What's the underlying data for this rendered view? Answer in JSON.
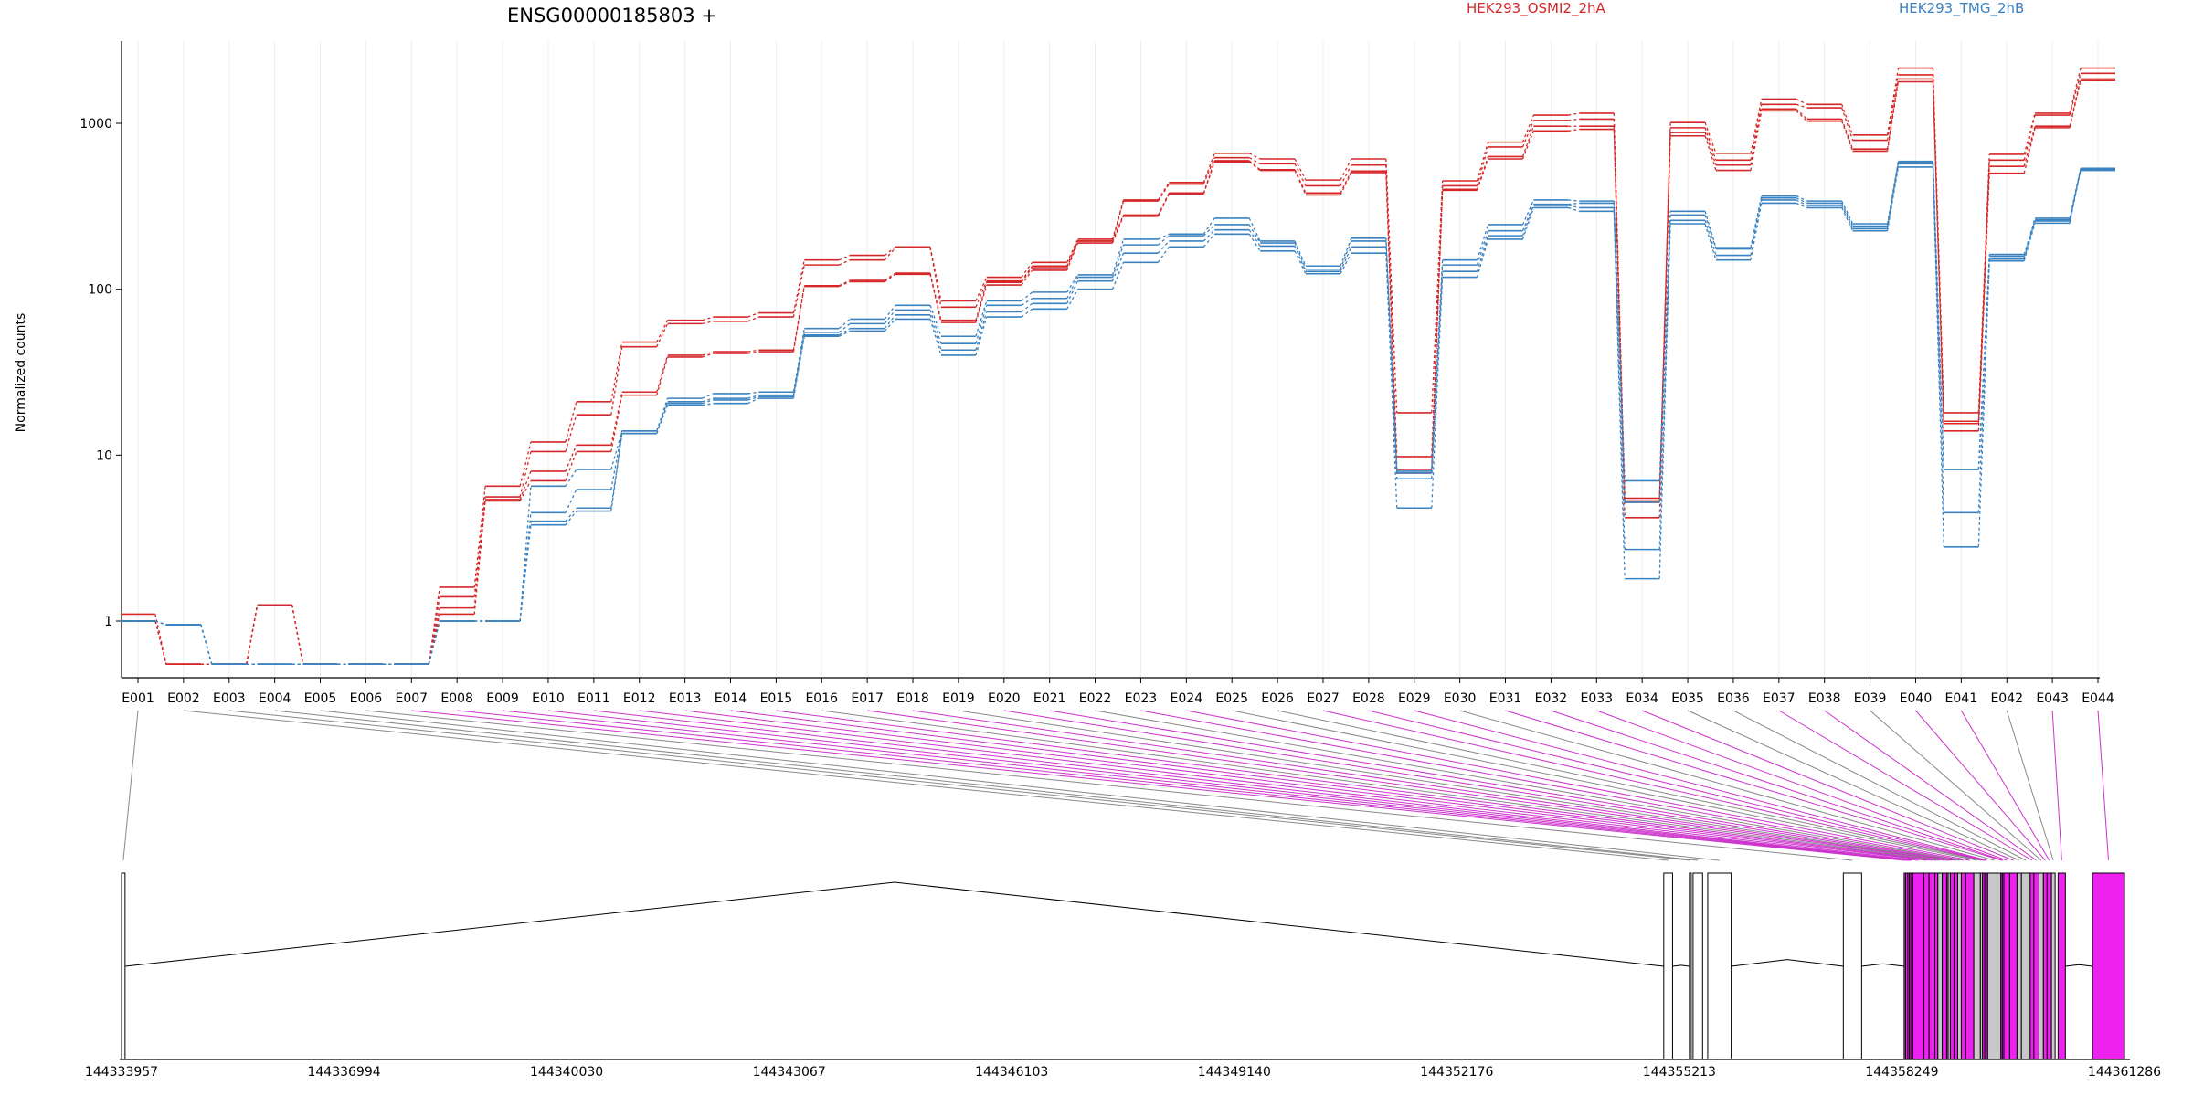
{
  "chart_data": {
    "type": "line",
    "title": "ENSG00000185803 +",
    "ylabel": "Normalized counts",
    "xlabel": "",
    "yscale": "log",
    "ylim": [
      0.55,
      2800
    ],
    "yticks": [
      {
        "value": 1,
        "label": "1"
      },
      {
        "value": 10,
        "label": "10"
      },
      {
        "value": 100,
        "label": "100"
      },
      {
        "value": 1000,
        "label": "1000"
      }
    ],
    "grid": "vertical",
    "legend_placement": "top",
    "categories": [
      "E001",
      "E002",
      "E003",
      "E004",
      "E005",
      "E006",
      "E007",
      "E008",
      "E009",
      "E010",
      "E011",
      "E012",
      "E013",
      "E014",
      "E015",
      "E016",
      "E017",
      "E018",
      "E019",
      "E020",
      "E021",
      "E022",
      "E023",
      "E024",
      "E025",
      "E026",
      "E027",
      "E028",
      "E029",
      "E030",
      "E031",
      "E032",
      "E033",
      "E034",
      "E035",
      "E036",
      "E037",
      "E038",
      "E039",
      "E040",
      "E041",
      "E042",
      "E043",
      "E044"
    ],
    "groups": [
      {
        "name": "HEK293_OSMI2_2hA",
        "color": "#d62728"
      },
      {
        "name": "HEK293_TMG_2hB",
        "color": "#3a82c0"
      }
    ],
    "series": [
      {
        "group": 0,
        "values": [
          1.1,
          0.55,
          0.55,
          1.25,
          0.55,
          0.55,
          0.55,
          1.6,
          6.5,
          12,
          21,
          48,
          65,
          68,
          72,
          150,
          160,
          180,
          85,
          118,
          145,
          200,
          345,
          440,
          660,
          610,
          455,
          610,
          18,
          450,
          770,
          1120,
          1150,
          5.5,
          1010,
          660,
          1400,
          1300,
          850,
          2150,
          18,
          650,
          1150,
          2150
        ]
      },
      {
        "group": 0,
        "values": [
          1.0,
          0.55,
          0.55,
          1.25,
          0.55,
          0.55,
          0.55,
          1.4,
          5.6,
          10.5,
          17.5,
          45,
          62,
          64,
          68,
          140,
          150,
          178,
          78,
          112,
          138,
          195,
          340,
          430,
          620,
          570,
          420,
          560,
          9.8,
          420,
          720,
          1040,
          1060,
          5.3,
          940,
          600,
          1300,
          1240,
          790,
          1960,
          16,
          600,
          1120,
          2000
        ]
      },
      {
        "group": 0,
        "values": [
          1.0,
          0.55,
          0.55,
          1.25,
          0.55,
          0.55,
          0.55,
          1.2,
          5.4,
          8,
          11.5,
          24,
          40,
          42,
          43,
          105,
          113,
          125,
          65,
          110,
          135,
          195,
          280,
          380,
          595,
          525,
          380,
          515,
          8.2,
          400,
          630,
          960,
          960,
          5.2,
          880,
          560,
          1220,
          1060,
          700,
          1850,
          15.5,
          550,
          960,
          1850
        ]
      },
      {
        "group": 0,
        "values": [
          1.0,
          0.55,
          0.55,
          1.25,
          0.55,
          0.55,
          0.55,
          1.1,
          5.3,
          7,
          10.5,
          23,
          39,
          41,
          42,
          104,
          111,
          123,
          63,
          106,
          130,
          190,
          275,
          375,
          585,
          520,
          370,
          505,
          7.8,
          395,
          610,
          900,
          920,
          4.2,
          840,
          520,
          1190,
          1030,
          680,
          1780,
          14,
          500,
          940,
          1810
        ]
      },
      {
        "group": 1,
        "values": [
          1.0,
          0.95,
          0.55,
          0.55,
          0.55,
          0.55,
          0.55,
          1.0,
          1.0,
          6.5,
          8.2,
          14,
          22,
          23.5,
          24,
          58,
          66,
          80,
          52,
          85,
          96,
          122,
          200,
          215,
          268,
          195,
          138,
          203,
          8,
          150,
          245,
          345,
          340,
          7,
          295,
          178,
          365,
          340,
          248,
          590,
          8.2,
          162,
          268,
          535
        ]
      },
      {
        "group": 1,
        "values": [
          1.0,
          0.95,
          0.55,
          0.55,
          0.55,
          0.55,
          0.55,
          1.0,
          1.0,
          4.5,
          6.2,
          14,
          21,
          22,
          23,
          55,
          62,
          75,
          47,
          80,
          88,
          118,
          185,
          210,
          245,
          190,
          132,
          195,
          7.8,
          140,
          225,
          325,
          330,
          5.2,
          280,
          175,
          355,
          330,
          240,
          580,
          8.2,
          158,
          262,
          530
        ]
      },
      {
        "group": 1,
        "values": [
          1.0,
          0.95,
          0.55,
          0.55,
          0.55,
          0.55,
          0.55,
          1.0,
          1.0,
          4,
          4.8,
          13.5,
          20.5,
          21.5,
          22.5,
          53,
          58,
          70,
          43,
          73,
          82,
          112,
          165,
          195,
          228,
          182,
          128,
          180,
          7.2,
          128,
          210,
          320,
          310,
          2.7,
          260,
          160,
          345,
          320,
          232,
          570,
          4.5,
          152,
          258,
          525
        ]
      },
      {
        "group": 1,
        "values": [
          1.0,
          0.95,
          0.55,
          0.55,
          0.55,
          0.55,
          0.55,
          1.0,
          1.0,
          3.8,
          4.6,
          13.5,
          20,
          20.5,
          22,
          52,
          56,
          66,
          40,
          68,
          76,
          100,
          145,
          180,
          215,
          170,
          124,
          165,
          4.8,
          118,
          200,
          310,
          295,
          1.8,
          248,
          150,
          330,
          310,
          225,
          545,
          2.8,
          148,
          250,
          520
        ]
      }
    ],
    "exons_genomic": [
      [
        144333957,
        144334005
      ],
      [
        144355000,
        144355120
      ],
      [
        144355350,
        144355375
      ],
      [
        144355400,
        144355530
      ],
      [
        144355600,
        144355920
      ],
      [
        144357450,
        144357700
      ],
      [
        144358280,
        144358300
      ],
      [
        144358300,
        144358330
      ],
      [
        144358330,
        144358350
      ],
      [
        144358350,
        144358370
      ],
      [
        144358370,
        144358400
      ],
      [
        144358400,
        144358550
      ],
      [
        144358550,
        144358620
      ],
      [
        144358620,
        144358700
      ],
      [
        144358700,
        144358740
      ],
      [
        144358740,
        144358800
      ],
      [
        144358800,
        144358860
      ],
      [
        144358860,
        144358880
      ],
      [
        144358880,
        144358910
      ],
      [
        144358910,
        144358960
      ],
      [
        144358960,
        144359010
      ],
      [
        144359010,
        144359060
      ],
      [
        144359060,
        144359120
      ],
      [
        144359120,
        144359230
      ],
      [
        144359230,
        144359320
      ],
      [
        144359320,
        144359350
      ],
      [
        144359350,
        144359380
      ],
      [
        144359380,
        144359400
      ],
      [
        144359400,
        144359420
      ],
      [
        144359420,
        144359600
      ],
      [
        144359600,
        144359620
      ],
      [
        144359620,
        144359640
      ],
      [
        144359640,
        144359720
      ],
      [
        144359720,
        144359820
      ],
      [
        144359820,
        144359880
      ],
      [
        144359880,
        144360000
      ],
      [
        144360000,
        144360050
      ],
      [
        144360050,
        144360120
      ],
      [
        144360120,
        144360180
      ],
      [
        144360180,
        144360230
      ],
      [
        144360230,
        144360290
      ],
      [
        144360290,
        144360340
      ],
      [
        144360380,
        144360480
      ],
      [
        144360850,
        144361286
      ]
    ],
    "exon_highlight": [
      false,
      false,
      false,
      false,
      false,
      false,
      true,
      true,
      true,
      true,
      true,
      true,
      true,
      true,
      true,
      false,
      true,
      true,
      false,
      true,
      true,
      false,
      true,
      true,
      false,
      false,
      true,
      true,
      true,
      false,
      true,
      true,
      true,
      true,
      false,
      false,
      true,
      true,
      false,
      true,
      true,
      false,
      true,
      true
    ],
    "genomic_axis": {
      "min": 144333957,
      "max": 144361286,
      "tick_labels": [
        "144333957",
        "144336994",
        "144340030",
        "144343067",
        "144346103",
        "144349140",
        "144352176",
        "144355213",
        "144358249",
        "144361286"
      ]
    }
  }
}
